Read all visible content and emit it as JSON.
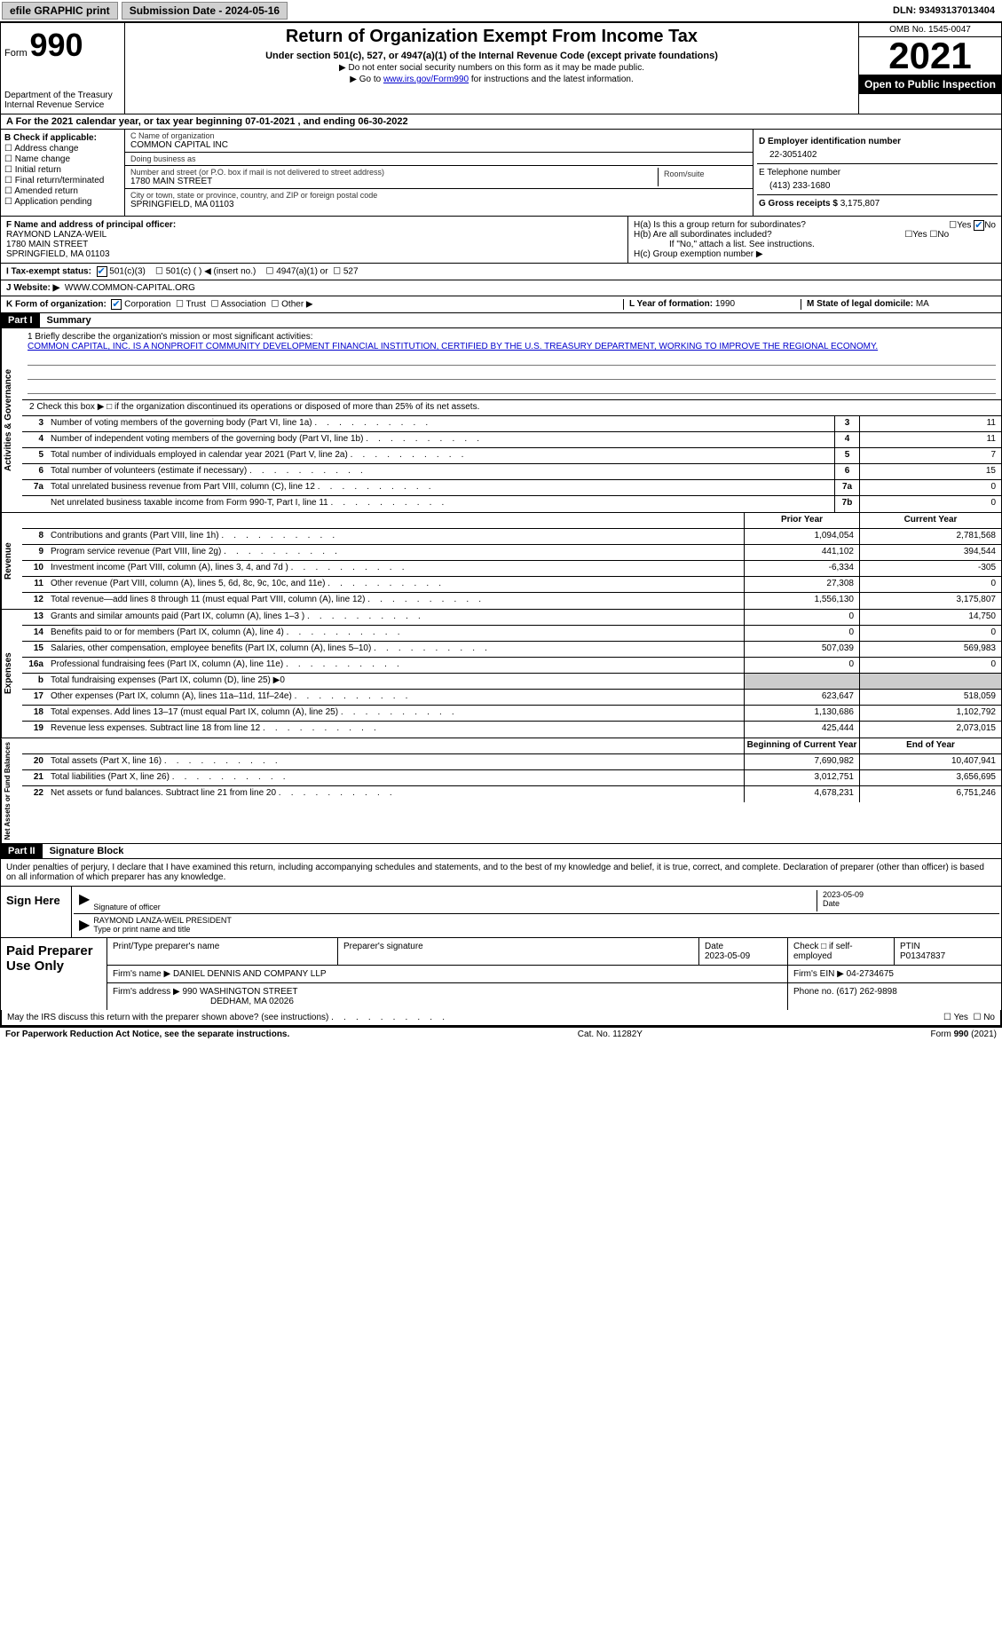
{
  "topbar": {
    "efile": "efile GRAPHIC print",
    "sub_label": "Submission Date - 2024-05-16",
    "dln": "DLN: 93493137013404"
  },
  "header": {
    "form_label": "Form",
    "form_no": "990",
    "dept": "Department of the Treasury\nInternal Revenue Service",
    "title": "Return of Organization Exempt From Income Tax",
    "sub": "Under section 501(c), 527, or 4947(a)(1) of the Internal Revenue Code (except private foundations)",
    "note1": "▶ Do not enter social security numbers on this form as it may be made public.",
    "note2_pre": "▶ Go to ",
    "note2_link": "www.irs.gov/Form990",
    "note2_post": " for instructions and the latest information.",
    "omb": "OMB No. 1545-0047",
    "year": "2021",
    "inspect": "Open to Public Inspection"
  },
  "period": "A For the 2021 calendar year, or tax year beginning 07-01-2021    , and ending 06-30-2022",
  "boxB": {
    "label": "B Check if applicable:",
    "opts": [
      "Address change",
      "Name change",
      "Initial return",
      "Final return/terminated",
      "Amended return",
      "Application pending"
    ]
  },
  "boxC": {
    "name_label": "C Name of organization",
    "name": "COMMON CAPITAL INC",
    "dba_label": "Doing business as",
    "dba": "",
    "addr_label": "Number and street (or P.O. box if mail is not delivered to street address)",
    "room_label": "Room/suite",
    "addr": "1780 MAIN STREET",
    "city_label": "City or town, state or province, country, and ZIP or foreign postal code",
    "city": "SPRINGFIELD, MA  01103"
  },
  "boxD": {
    "label": "D Employer identification number",
    "value": "22-3051402"
  },
  "boxE": {
    "label": "E Telephone number",
    "value": "(413) 233-1680"
  },
  "boxG": {
    "label": "G Gross receipts $",
    "value": "3,175,807"
  },
  "boxF": {
    "label": "F  Name and address of principal officer:",
    "name": "RAYMOND LANZA-WEIL",
    "addr1": "1780 MAIN STREET",
    "addr2": "SPRINGFIELD, MA  01103"
  },
  "boxH": {
    "a": "H(a)  Is this a group return for subordinates?",
    "b": "H(b)  Are all subordinates included?",
    "b_note": "If \"No,\" attach a list. See instructions.",
    "c": "H(c)  Group exemption number ▶"
  },
  "rowI": {
    "label": "I   Tax-exempt status:",
    "opts": [
      "501(c)(3)",
      "501(c) (  ) ◀ (insert no.)",
      "4947(a)(1) or",
      "527"
    ]
  },
  "rowJ": {
    "label": "J   Website: ▶",
    "value": "WWW.COMMON-CAPITAL.ORG"
  },
  "rowK": {
    "label": "K Form of organization:",
    "opts": [
      "Corporation",
      "Trust",
      "Association",
      "Other ▶"
    ]
  },
  "rowL": {
    "label": "L Year of formation:",
    "value": "1990"
  },
  "rowM": {
    "label": "M State of legal domicile:",
    "value": "MA"
  },
  "part1": {
    "label": "Part I",
    "title": "Summary"
  },
  "mission": {
    "label": "1  Briefly describe the organization's mission or most significant activities:",
    "text": "COMMON CAPITAL, INC. IS A NONPROFIT COMMUNITY DEVELOPMENT FINANCIAL INSTITUTION, CERTIFIED BY THE U.S. TREASURY DEPARTMENT, WORKING TO IMPROVE THE REGIONAL ECONOMY."
  },
  "line2": "2   Check this box ▶ □  if the organization discontinued its operations or disposed of more than 25% of its net assets.",
  "governance": [
    {
      "n": "3",
      "d": "Number of voting members of the governing body (Part VI, line 1a)",
      "b": "3",
      "v": "11"
    },
    {
      "n": "4",
      "d": "Number of independent voting members of the governing body (Part VI, line 1b)",
      "b": "4",
      "v": "11"
    },
    {
      "n": "5",
      "d": "Total number of individuals employed in calendar year 2021 (Part V, line 2a)",
      "b": "5",
      "v": "7"
    },
    {
      "n": "6",
      "d": "Total number of volunteers (estimate if necessary)",
      "b": "6",
      "v": "15"
    },
    {
      "n": "7a",
      "d": "Total unrelated business revenue from Part VIII, column (C), line 12",
      "b": "7a",
      "v": "0"
    },
    {
      "n": "",
      "d": "Net unrelated business taxable income from Form 990-T, Part I, line 11",
      "b": "7b",
      "v": "0"
    }
  ],
  "col_headers": {
    "prior": "Prior Year",
    "current": "Current Year",
    "begin": "Beginning of Current Year",
    "end": "End of Year"
  },
  "revenue": [
    {
      "n": "8",
      "d": "Contributions and grants (Part VIII, line 1h)",
      "p": "1,094,054",
      "c": "2,781,568"
    },
    {
      "n": "9",
      "d": "Program service revenue (Part VIII, line 2g)",
      "p": "441,102",
      "c": "394,544"
    },
    {
      "n": "10",
      "d": "Investment income (Part VIII, column (A), lines 3, 4, and 7d )",
      "p": "-6,334",
      "c": "-305"
    },
    {
      "n": "11",
      "d": "Other revenue (Part VIII, column (A), lines 5, 6d, 8c, 9c, 10c, and 11e)",
      "p": "27,308",
      "c": "0"
    },
    {
      "n": "12",
      "d": "Total revenue—add lines 8 through 11 (must equal Part VIII, column (A), line 12)",
      "p": "1,556,130",
      "c": "3,175,807"
    }
  ],
  "expenses": [
    {
      "n": "13",
      "d": "Grants and similar amounts paid (Part IX, column (A), lines 1–3 )",
      "p": "0",
      "c": "14,750"
    },
    {
      "n": "14",
      "d": "Benefits paid to or for members (Part IX, column (A), line 4)",
      "p": "0",
      "c": "0"
    },
    {
      "n": "15",
      "d": "Salaries, other compensation, employee benefits (Part IX, column (A), lines 5–10)",
      "p": "507,039",
      "c": "569,983"
    },
    {
      "n": "16a",
      "d": "Professional fundraising fees (Part IX, column (A), line 11e)",
      "p": "0",
      "c": "0"
    },
    {
      "n": "b",
      "d": "Total fundraising expenses (Part IX, column (D), line 25) ▶0",
      "p": "",
      "c": "",
      "grey": true
    },
    {
      "n": "17",
      "d": "Other expenses (Part IX, column (A), lines 11a–11d, 11f–24e)",
      "p": "623,647",
      "c": "518,059"
    },
    {
      "n": "18",
      "d": "Total expenses. Add lines 13–17 (must equal Part IX, column (A), line 25)",
      "p": "1,130,686",
      "c": "1,102,792"
    },
    {
      "n": "19",
      "d": "Revenue less expenses. Subtract line 18 from line 12",
      "p": "425,444",
      "c": "2,073,015"
    }
  ],
  "netassets": [
    {
      "n": "20",
      "d": "Total assets (Part X, line 16)",
      "p": "7,690,982",
      "c": "10,407,941"
    },
    {
      "n": "21",
      "d": "Total liabilities (Part X, line 26)",
      "p": "3,012,751",
      "c": "3,656,695"
    },
    {
      "n": "22",
      "d": "Net assets or fund balances. Subtract line 21 from line 20",
      "p": "4,678,231",
      "c": "6,751,246"
    }
  ],
  "vtabs": {
    "gov": "Activities & Governance",
    "rev": "Revenue",
    "exp": "Expenses",
    "net": "Net Assets or Fund Balances"
  },
  "part2": {
    "label": "Part II",
    "title": "Signature Block"
  },
  "sig": {
    "penalty": "Under penalties of perjury, I declare that I have examined this return, including accompanying schedules and statements, and to the best of my knowledge and belief, it is true, correct, and complete. Declaration of preparer (other than officer) is based on all information of which preparer has any knowledge.",
    "sign_here": "Sign Here",
    "sig_officer": "Signature of officer",
    "date": "2023-05-09",
    "name_title": "RAYMOND LANZA-WEIL  PRESIDENT",
    "type_name": "Type or print name and title"
  },
  "paid": {
    "label": "Paid Preparer Use Only",
    "h": [
      "Print/Type preparer's name",
      "Preparer's signature",
      "Date",
      "Check □ if self-employed",
      "PTIN"
    ],
    "date": "2023-05-09",
    "ptin": "P01347837",
    "firm_label": "Firm's name    ▶",
    "firm": "DANIEL DENNIS AND COMPANY LLP",
    "ein_label": "Firm's EIN ▶",
    "ein": "04-2734675",
    "addr_label": "Firm's address ▶",
    "addr1": "990 WASHINGTON STREET",
    "addr2": "DEDHAM, MA  02026",
    "phone_label": "Phone no.",
    "phone": "(617) 262-9898"
  },
  "discuss": "May the IRS discuss this return with the preparer shown above? (see instructions)",
  "footer": {
    "left": "For Paperwork Reduction Act Notice, see the separate instructions.",
    "mid": "Cat. No. 11282Y",
    "right": "Form 990 (2021)"
  }
}
